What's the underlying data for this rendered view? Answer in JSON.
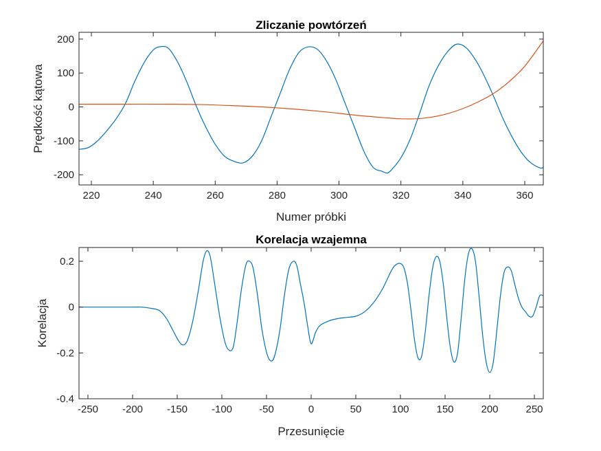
{
  "chart_data": [
    {
      "type": "line",
      "title": "Zliczanie powtórzeń",
      "xlabel": "Numer próbki",
      "ylabel": "Prędkość kątowa",
      "xlim": [
        216,
        366
      ],
      "ylim": [
        -230,
        220
      ],
      "xticks": [
        220,
        240,
        260,
        280,
        300,
        320,
        340,
        360
      ],
      "yticks": [
        -200,
        -100,
        0,
        100,
        200
      ],
      "grid": false,
      "series": [
        {
          "color": "#0072BD",
          "x": [
            216,
            219,
            222,
            225,
            228,
            231,
            234,
            237,
            240,
            242.5,
            245,
            248,
            251,
            254,
            257,
            260,
            263,
            266,
            269,
            272,
            275,
            278,
            281,
            284,
            287,
            290,
            293,
            296,
            299,
            302,
            305,
            308,
            311,
            314,
            315.5,
            317,
            320,
            323,
            326,
            329,
            332,
            335,
            338,
            341,
            344,
            347,
            350,
            353,
            356,
            359,
            362,
            365,
            366
          ],
          "y": [
            -125,
            -120,
            -100,
            -70,
            -35,
            10,
            75,
            130,
            168,
            178,
            172,
            130,
            70,
            0,
            -60,
            -110,
            -145,
            -160,
            -165,
            -145,
            -100,
            -30,
            40,
            110,
            160,
            177,
            170,
            135,
            80,
            10,
            -60,
            -130,
            -178,
            -190,
            -195,
            -185,
            -150,
            -95,
            -20,
            60,
            120,
            162,
            185,
            175,
            140,
            90,
            30,
            -35,
            -90,
            -135,
            -165,
            -180,
            -178
          ]
        },
        {
          "color": "#D95319",
          "x": [
            216,
            230,
            245,
            255,
            265,
            275,
            285,
            295,
            305,
            315,
            320,
            325,
            330,
            335,
            340,
            345,
            350,
            355,
            360,
            366
          ],
          "y": [
            8,
            8,
            8,
            7,
            4,
            0,
            -6,
            -14,
            -24,
            -32,
            -35,
            -35,
            -30,
            -20,
            -5,
            15,
            40,
            75,
            120,
            195
          ]
        }
      ]
    },
    {
      "type": "line",
      "title": "Korelacja wzajemna",
      "xlabel": "Przesunięcie",
      "ylabel": "Korelacja",
      "xlim": [
        -260,
        260
      ],
      "ylim": [
        -0.4,
        0.26
      ],
      "xticks": [
        -250,
        -200,
        -150,
        -100,
        -50,
        0,
        50,
        100,
        150,
        200,
        250
      ],
      "yticks": [
        -0.4,
        -0.2,
        0,
        0.2
      ],
      "ytick_labels": [
        "-0.4",
        "-0.2",
        "0",
        "0.2"
      ],
      "grid": false,
      "series": [
        {
          "color": "#0072BD",
          "x": [
            -260,
            -240,
            -220,
            -200,
            -190,
            -180,
            -170,
            -162,
            -155,
            -148,
            -143,
            -138,
            -132,
            -126,
            -121,
            -117,
            -113,
            -108,
            -102,
            -96,
            -91,
            -87,
            -83,
            -78,
            -73,
            -69,
            -65,
            -60,
            -55,
            -49,
            -44,
            -40,
            -35,
            -30,
            -25,
            -20,
            -16,
            -12,
            -8,
            -4,
            0,
            5,
            10,
            20,
            30,
            40,
            50,
            60,
            70,
            80,
            90,
            95,
            100,
            104,
            108,
            112,
            116,
            120,
            124,
            128,
            132,
            136,
            140,
            144,
            148,
            152,
            156,
            160,
            164,
            168,
            172,
            176,
            180,
            184,
            188,
            192,
            196,
            200,
            204,
            208,
            212,
            216,
            220,
            224,
            228,
            232,
            236,
            240,
            244,
            248,
            252,
            256,
            260
          ],
          "y": [
            0,
            0,
            0,
            0,
            0,
            -0.005,
            -0.015,
            -0.05,
            -0.1,
            -0.15,
            -0.165,
            -0.14,
            -0.05,
            0.08,
            0.2,
            0.245,
            0.22,
            0.1,
            -0.05,
            -0.16,
            -0.19,
            -0.17,
            -0.07,
            0.08,
            0.185,
            0.2,
            0.17,
            0.05,
            -0.1,
            -0.21,
            -0.235,
            -0.2,
            -0.1,
            0.05,
            0.165,
            0.2,
            0.18,
            0.1,
            0.02,
            -0.08,
            -0.16,
            -0.11,
            -0.08,
            -0.06,
            -0.05,
            -0.045,
            -0.04,
            -0.02,
            0.02,
            0.08,
            0.16,
            0.185,
            0.19,
            0.17,
            0.1,
            -0.02,
            -0.15,
            -0.225,
            -0.21,
            -0.1,
            0.05,
            0.17,
            0.22,
            0.2,
            0.1,
            -0.05,
            -0.18,
            -0.24,
            -0.2,
            -0.05,
            0.12,
            0.23,
            0.255,
            0.2,
            0.05,
            -0.12,
            -0.24,
            -0.285,
            -0.24,
            -0.1,
            0.05,
            0.15,
            0.175,
            0.16,
            0.1,
            0.04,
            0,
            -0.02,
            -0.04,
            -0.04,
            0.0,
            0.05,
            0.05
          ]
        }
      ]
    }
  ]
}
